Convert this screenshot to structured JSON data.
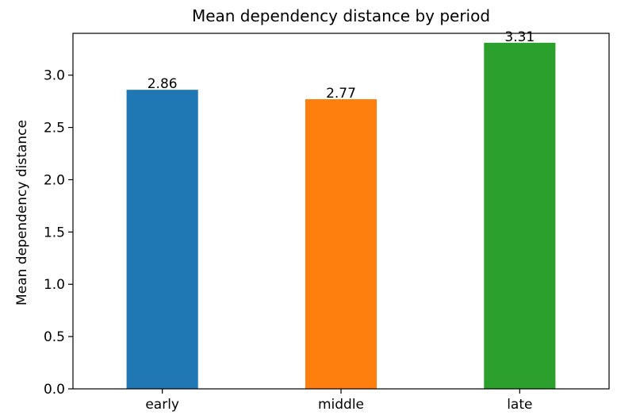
{
  "chart_data": {
    "type": "bar",
    "title": "Mean dependency distance by period",
    "xlabel": "",
    "ylabel": "Mean dependency distance",
    "categories": [
      "early",
      "middle",
      "late"
    ],
    "values": [
      2.86,
      2.77,
      3.31
    ],
    "data_labels": [
      "2.86",
      "2.77",
      "3.31"
    ],
    "colors": [
      "#1f77b4",
      "#ff7f0e",
      "#2ca02c"
    ],
    "ylim": [
      0,
      3.4
    ],
    "yticks": [
      0.0,
      0.5,
      1.0,
      1.5,
      2.0,
      2.5,
      3.0
    ],
    "ytick_labels": [
      "0.0",
      "0.5",
      "1.0",
      "1.5",
      "2.0",
      "2.5",
      "3.0"
    ],
    "grid": false,
    "legend": "none"
  }
}
